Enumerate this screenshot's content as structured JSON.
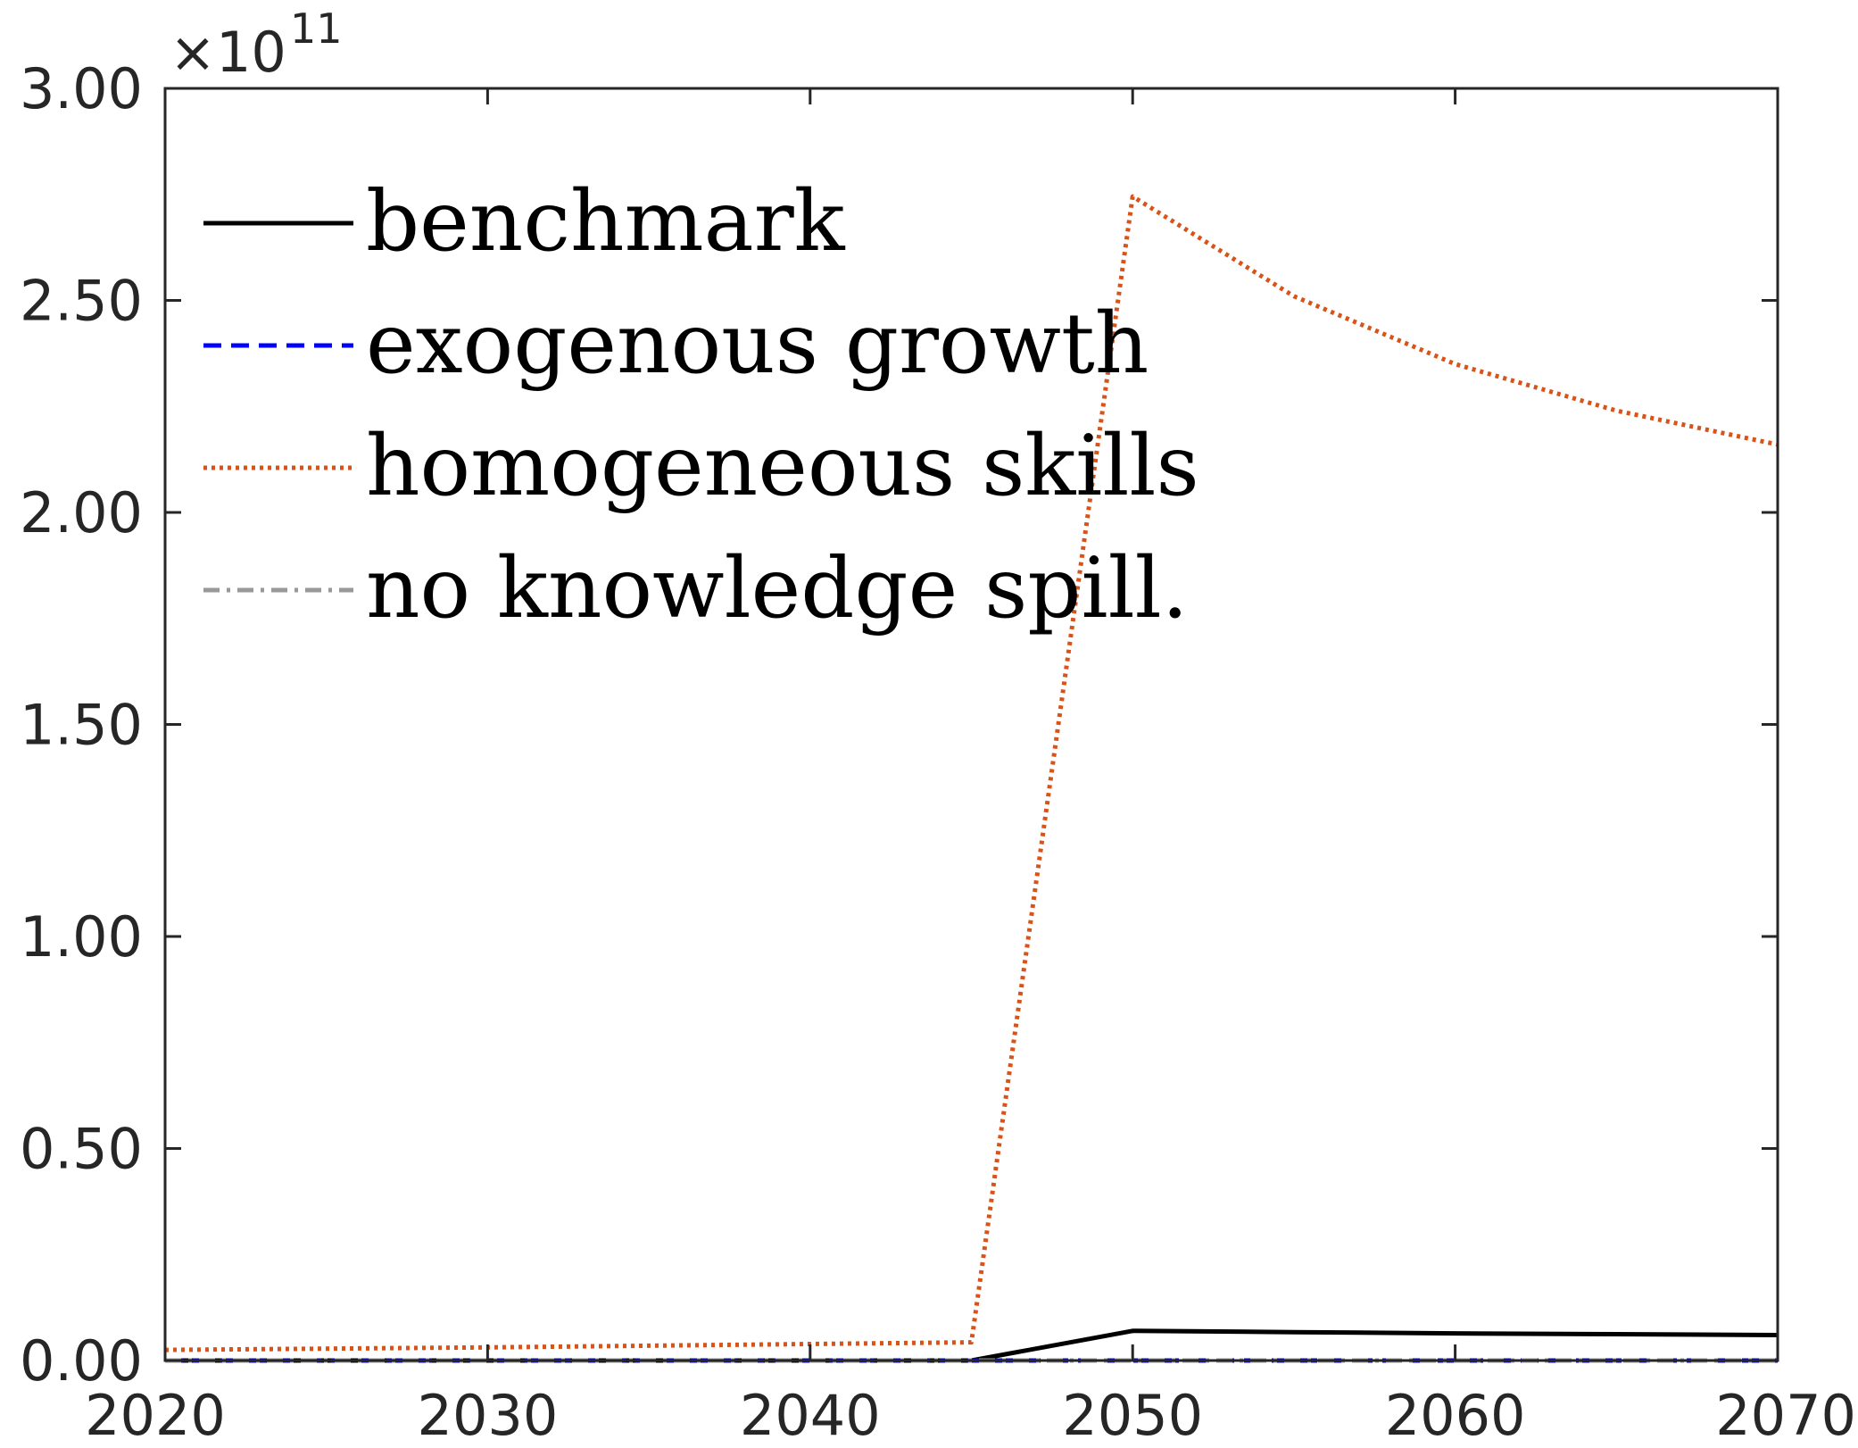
{
  "chart_data": {
    "type": "line",
    "title": "",
    "xlabel": "",
    "ylabel": "",
    "x": [
      2020,
      2025,
      2030,
      2035,
      2040,
      2045,
      2050,
      2055,
      2060,
      2065,
      2070
    ],
    "xlim": [
      2020,
      2070
    ],
    "ylim": [
      0,
      300000000000
    ],
    "x_ticks": [
      2020,
      2030,
      2040,
      2050,
      2060,
      2070
    ],
    "x_tick_labels": [
      "2020",
      "2030",
      "2040",
      "2050",
      "2060",
      "2070"
    ],
    "y_ticks": [
      0,
      50000000000,
      100000000000,
      150000000000,
      200000000000,
      250000000000,
      300000000000
    ],
    "y_tick_labels": [
      "0.00",
      "0.50",
      "1.00",
      "1.50",
      "2.00",
      "2.50",
      "3.00"
    ],
    "y_exponent": {
      "multiplier": "×10",
      "power": "11"
    },
    "grid": false,
    "legend_position": "top-left",
    "series": [
      {
        "name": "benchmark",
        "color": "#000000",
        "line_style": "solid",
        "values": [
          0,
          0,
          0,
          0,
          0,
          0,
          7000000000,
          6700000000,
          6400000000,
          6200000000,
          6000000000
        ]
      },
      {
        "name": "exogenous growth",
        "color": "#0000ff",
        "line_style": "dashed",
        "values": [
          0,
          0,
          0,
          0,
          0,
          0,
          0,
          0,
          0,
          0,
          0
        ]
      },
      {
        "name": "homogeneous skills",
        "color": "#d95319",
        "line_style": "dotted",
        "values": [
          2500000000,
          2800000000,
          3100000000,
          3500000000,
          3900000000,
          4300000000,
          274500000000,
          251000000000,
          235000000000,
          224000000000,
          216000000000
        ]
      },
      {
        "name": "no knowledge spill.",
        "color": "#999999",
        "line_style": "dashdot",
        "values": [
          0,
          0,
          0,
          0,
          0,
          0,
          0,
          0,
          0,
          0,
          0
        ]
      }
    ]
  }
}
